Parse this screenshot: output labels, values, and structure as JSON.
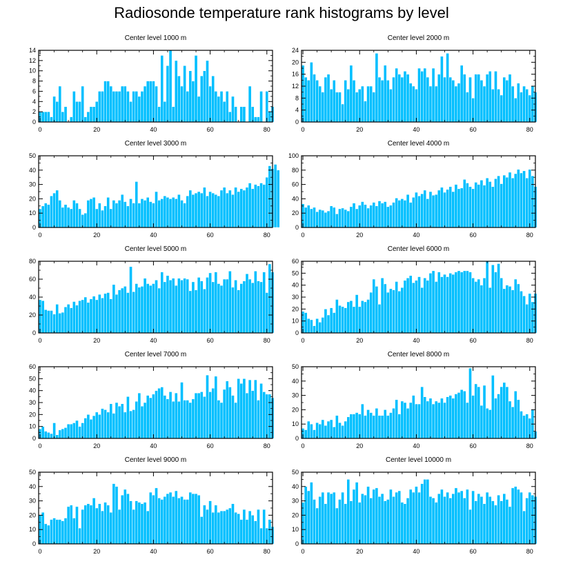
{
  "figure": {
    "title": "Radiosonde temperature rank histograms by level",
    "bar_color": "#00bfff",
    "bar_edge_color": "#ffffff"
  },
  "chart_data": [
    {
      "type": "bar",
      "title": "Center level 1000 m",
      "x_start": 0,
      "xlim": [
        -0.5,
        82
      ],
      "xticks": [
        0,
        20,
        40,
        60,
        80
      ],
      "ylim": [
        0,
        14
      ],
      "yticks": [
        0,
        2,
        4,
        6,
        8,
        10,
        12,
        14
      ],
      "values": [
        2,
        2,
        2,
        2,
        1,
        5,
        4,
        7,
        2,
        3,
        0,
        1,
        6,
        4,
        4,
        7,
        1,
        2,
        3,
        3,
        4,
        6,
        6,
        8,
        8,
        7,
        6,
        6,
        6,
        7,
        7,
        6,
        4,
        6,
        6,
        5,
        6,
        7,
        8,
        8,
        8,
        7,
        3,
        13,
        4,
        11,
        14,
        3,
        12,
        9,
        7,
        11,
        6,
        10,
        8,
        13,
        5,
        9,
        10,
        12,
        7,
        9,
        6,
        5,
        6,
        4,
        6,
        2,
        5,
        3,
        0,
        3,
        3,
        0,
        7,
        3,
        1,
        1,
        6,
        0,
        6,
        2,
        3
      ]
    },
    {
      "type": "bar",
      "title": "Center level 2000 m",
      "x_start": 0,
      "xlim": [
        -0.5,
        82
      ],
      "xticks": [
        0,
        20,
        40,
        60,
        80
      ],
      "ylim": [
        0,
        24
      ],
      "yticks": [
        0,
        4,
        8,
        12,
        16,
        20,
        24
      ],
      "values": [
        19,
        15,
        14,
        20,
        16,
        14,
        12,
        10,
        15,
        16,
        11,
        14,
        10,
        10,
        6,
        14,
        11,
        19,
        14,
        10,
        11,
        12,
        7,
        12,
        12,
        10,
        23,
        15,
        14,
        19,
        14,
        11,
        15,
        18,
        16,
        15,
        17,
        16,
        13,
        12,
        11,
        18,
        17,
        18,
        15,
        12,
        18,
        12,
        16,
        22,
        15,
        23,
        15,
        14,
        12,
        13,
        19,
        16,
        10,
        15,
        8,
        16,
        16,
        14,
        12,
        16,
        17,
        11,
        17,
        11,
        9,
        15,
        14,
        16,
        12,
        8,
        13,
        10,
        12,
        11,
        9,
        12,
        10
      ]
    },
    {
      "type": "bar",
      "title": "Center level 3000 m",
      "x_start": 0,
      "xlim": [
        -0.5,
        82
      ],
      "xticks": [
        0,
        20,
        40,
        60,
        80
      ],
      "ylim": [
        0,
        50
      ],
      "yticks": [
        0,
        10,
        20,
        30,
        40,
        50
      ],
      "values": [
        13,
        15,
        17,
        16,
        22,
        24,
        26,
        19,
        14,
        16,
        14,
        13,
        19,
        17,
        13,
        9,
        10,
        19,
        20,
        21,
        13,
        17,
        12,
        15,
        21,
        13,
        19,
        17,
        19,
        23,
        18,
        15,
        20,
        17,
        32,
        17,
        20,
        19,
        21,
        18,
        17,
        25,
        19,
        20,
        22,
        21,
        20,
        21,
        20,
        23,
        19,
        17,
        22,
        26,
        23,
        24,
        25,
        24,
        28,
        22,
        25,
        24,
        23,
        22,
        26,
        28,
        24,
        26,
        23,
        28,
        25,
        27,
        26,
        28,
        31,
        27,
        30,
        29,
        31,
        30,
        35,
        43,
        41,
        44,
        40
      ]
    },
    {
      "type": "bar",
      "title": "Center level 4000 m",
      "x_start": 0,
      "xlim": [
        -0.5,
        82
      ],
      "xticks": [
        0,
        20,
        40,
        60,
        80
      ],
      "ylim": [
        0,
        100
      ],
      "yticks": [
        0,
        20,
        40,
        60,
        80,
        100
      ],
      "values": [
        33,
        28,
        31,
        26,
        28,
        22,
        25,
        24,
        21,
        23,
        30,
        28,
        19,
        26,
        27,
        25,
        23,
        29,
        34,
        26,
        31,
        36,
        32,
        27,
        31,
        35,
        30,
        37,
        34,
        36,
        29,
        31,
        35,
        41,
        38,
        40,
        38,
        46,
        35,
        42,
        49,
        44,
        47,
        52,
        40,
        50,
        45,
        46,
        52,
        56,
        49,
        53,
        57,
        50,
        60,
        54,
        55,
        67,
        62,
        57,
        54,
        63,
        60,
        66,
        59,
        69,
        64,
        57,
        68,
        72,
        61,
        73,
        70,
        77,
        69,
        75,
        81,
        76,
        79,
        69,
        81,
        72,
        57
      ]
    },
    {
      "type": "bar",
      "title": "Center level 5000 m",
      "x_start": 0,
      "xlim": [
        -0.5,
        82
      ],
      "xticks": [
        0,
        20,
        40,
        60,
        80
      ],
      "ylim": [
        0,
        80
      ],
      "yticks": [
        0,
        20,
        40,
        60,
        80
      ],
      "values": [
        37,
        36,
        26,
        25,
        25,
        21,
        32,
        22,
        23,
        29,
        32,
        28,
        35,
        31,
        36,
        37,
        40,
        34,
        38,
        41,
        37,
        43,
        39,
        44,
        45,
        38,
        54,
        43,
        48,
        50,
        52,
        45,
        74,
        46,
        55,
        51,
        52,
        61,
        55,
        53,
        55,
        59,
        50,
        68,
        57,
        64,
        59,
        61,
        53,
        61,
        59,
        61,
        60,
        47,
        57,
        48,
        62,
        58,
        49,
        62,
        67,
        57,
        68,
        55,
        53,
        60,
        60,
        69,
        51,
        59,
        48,
        55,
        58,
        66,
        60,
        56,
        69,
        58,
        57,
        68,
        45,
        77,
        68
      ]
    },
    {
      "type": "bar",
      "title": "Center level 6000 m",
      "x_start": 0,
      "xlim": [
        -0.5,
        82
      ],
      "xticks": [
        0,
        20,
        40,
        60,
        80
      ],
      "ylim": [
        0,
        60
      ],
      "yticks": [
        0,
        10,
        20,
        30,
        40,
        50,
        60
      ],
      "values": [
        18,
        17,
        12,
        11,
        6,
        12,
        9,
        13,
        20,
        15,
        21,
        17,
        28,
        23,
        22,
        21,
        26,
        27,
        22,
        32,
        22,
        27,
        26,
        28,
        34,
        45,
        39,
        24,
        46,
        41,
        34,
        37,
        36,
        43,
        35,
        38,
        44,
        46,
        48,
        42,
        44,
        47,
        38,
        46,
        44,
        50,
        52,
        43,
        51,
        47,
        49,
        47,
        50,
        49,
        51,
        52,
        51,
        52,
        52,
        51,
        46,
        43,
        45,
        40,
        46,
        60,
        38,
        57,
        51,
        58,
        46,
        37,
        40,
        39,
        36,
        45,
        41,
        35,
        31,
        24,
        33,
        26,
        33
      ]
    },
    {
      "type": "bar",
      "title": "Center level 7000 m",
      "x_start": 0,
      "xlim": [
        -0.5,
        82
      ],
      "xticks": [
        0,
        20,
        40,
        60,
        80
      ],
      "ylim": [
        0,
        60
      ],
      "yticks": [
        0,
        10,
        20,
        30,
        40,
        50,
        60
      ],
      "values": [
        8,
        10,
        6,
        5,
        4,
        13,
        3,
        7,
        8,
        9,
        12,
        12,
        13,
        15,
        10,
        13,
        17,
        20,
        16,
        19,
        22,
        20,
        25,
        24,
        22,
        29,
        21,
        30,
        27,
        29,
        22,
        35,
        23,
        24,
        31,
        38,
        27,
        30,
        36,
        34,
        37,
        40,
        42,
        43,
        36,
        33,
        39,
        31,
        38,
        31,
        47,
        32,
        32,
        30,
        33,
        38,
        38,
        39,
        35,
        53,
        39,
        42,
        52,
        32,
        30,
        41,
        48,
        43,
        36,
        30,
        50,
        46,
        50,
        38,
        49,
        40,
        49,
        32,
        46,
        39,
        37,
        37,
        34
      ]
    },
    {
      "type": "bar",
      "title": "Center level 8000 m",
      "x_start": 0,
      "xlim": [
        -0.5,
        82
      ],
      "xticks": [
        0,
        20,
        40,
        60,
        80
      ],
      "ylim": [
        0,
        50
      ],
      "yticks": [
        0,
        10,
        20,
        30,
        40,
        50
      ],
      "values": [
        7,
        6,
        12,
        10,
        6,
        11,
        10,
        13,
        9,
        12,
        13,
        8,
        16,
        11,
        9,
        12,
        15,
        17,
        17,
        18,
        17,
        24,
        16,
        20,
        18,
        16,
        21,
        16,
        16,
        20,
        16,
        18,
        21,
        27,
        17,
        26,
        25,
        21,
        25,
        30,
        24,
        24,
        36,
        29,
        26,
        28,
        24,
        26,
        25,
        28,
        25,
        29,
        30,
        28,
        31,
        32,
        34,
        33,
        25,
        49,
        30,
        38,
        36,
        23,
        37,
        21,
        20,
        44,
        28,
        31,
        36,
        39,
        36,
        26,
        22,
        33,
        27,
        19,
        16,
        17,
        14,
        20,
        5
      ]
    },
    {
      "type": "bar",
      "title": "Center level 9000 m",
      "x_start": 0,
      "xlim": [
        -0.5,
        82
      ],
      "xticks": [
        0,
        20,
        40,
        60,
        80
      ],
      "ylim": [
        0,
        50
      ],
      "yticks": [
        0,
        10,
        20,
        30,
        40,
        50
      ],
      "values": [
        20,
        22,
        14,
        13,
        17,
        18,
        17,
        17,
        16,
        18,
        26,
        27,
        18,
        26,
        11,
        24,
        27,
        28,
        27,
        32,
        25,
        28,
        23,
        29,
        27,
        22,
        42,
        40,
        24,
        34,
        38,
        35,
        30,
        24,
        30,
        29,
        28,
        29,
        23,
        36,
        34,
        39,
        32,
        31,
        33,
        35,
        36,
        33,
        37,
        32,
        33,
        31,
        31,
        36,
        35,
        35,
        34,
        19,
        27,
        24,
        30,
        22,
        27,
        22,
        23,
        23,
        24,
        25,
        28,
        22,
        21,
        17,
        24,
        17,
        23,
        20,
        16,
        24,
        11,
        24,
        11,
        17,
        12
      ]
    },
    {
      "type": "bar",
      "title": "Center level 10000 m",
      "x_start": 0,
      "xlim": [
        -0.5,
        82
      ],
      "xticks": [
        0,
        20,
        40,
        60,
        80
      ],
      "ylim": [
        0,
        50
      ],
      "yticks": [
        0,
        10,
        20,
        30,
        40,
        50
      ],
      "values": [
        29,
        40,
        37,
        43,
        31,
        25,
        33,
        36,
        28,
        36,
        35,
        36,
        25,
        31,
        36,
        28,
        45,
        30,
        38,
        43,
        29,
        35,
        34,
        40,
        32,
        38,
        39,
        33,
        35,
        30,
        31,
        38,
        33,
        36,
        37,
        29,
        28,
        32,
        38,
        36,
        40,
        36,
        42,
        45,
        45,
        33,
        32,
        29,
        35,
        38,
        33,
        36,
        32,
        35,
        39,
        36,
        37,
        32,
        38,
        24,
        37,
        30,
        35,
        33,
        28,
        36,
        33,
        30,
        27,
        34,
        30,
        35,
        31,
        26,
        39,
        40,
        38,
        36,
        23,
        32,
        36,
        34,
        33
      ]
    }
  ]
}
